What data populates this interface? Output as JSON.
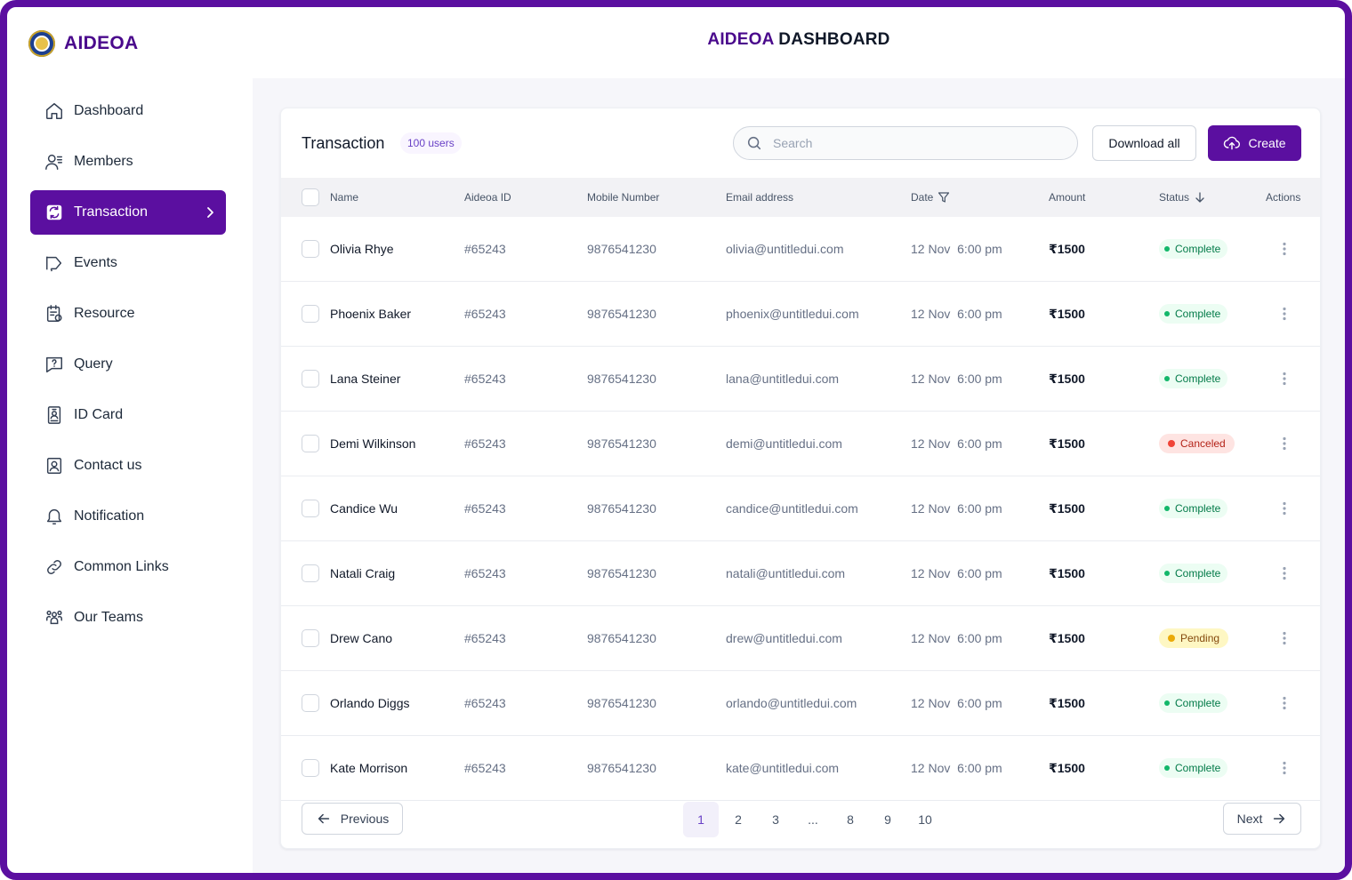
{
  "brand": {
    "name": "AIDEOA"
  },
  "header": {
    "title_accent": "AIDEOA",
    "title_rest": "DASHBOARD"
  },
  "sidebar": {
    "items": [
      {
        "label": "Dashboard",
        "icon": "home-icon"
      },
      {
        "label": "Members",
        "icon": "members-icon"
      },
      {
        "label": "Transaction",
        "icon": "transaction-icon",
        "active": true
      },
      {
        "label": "Events",
        "icon": "megaphone-icon"
      },
      {
        "label": "Resource",
        "icon": "resource-icon"
      },
      {
        "label": "Query",
        "icon": "query-icon"
      },
      {
        "label": "ID Card",
        "icon": "id-card-icon"
      },
      {
        "label": "Contact us",
        "icon": "contact-icon"
      },
      {
        "label": "Notification",
        "icon": "bell-icon"
      },
      {
        "label": "Common Links",
        "icon": "link-icon"
      },
      {
        "label": "Our Teams",
        "icon": "teams-icon"
      }
    ]
  },
  "toolbar": {
    "title": "Transaction",
    "badge": "100 users",
    "search_placeholder": "Search",
    "download_label": "Download all",
    "create_label": "Create"
  },
  "table": {
    "columns": {
      "name": "Name",
      "id": "Aideoa ID",
      "mobile": "Mobile Number",
      "email": "Email address",
      "date": "Date",
      "amount": "Amount",
      "status": "Status",
      "actions": "Actions"
    },
    "rows": [
      {
        "name": "Olivia Rhye",
        "id": "#65243",
        "mobile": "9876541230",
        "email": "olivia@untitledui.com",
        "date": "12 Nov  6:00 pm",
        "amount": "₹1500",
        "status": "Complete",
        "status_type": "complete"
      },
      {
        "name": "Phoenix Baker",
        "id": "#65243",
        "mobile": "9876541230",
        "email": "phoenix@untitledui.com",
        "date": "12 Nov  6:00 pm",
        "amount": "₹1500",
        "status": "Complete",
        "status_type": "complete"
      },
      {
        "name": "Lana Steiner",
        "id": "#65243",
        "mobile": "9876541230",
        "email": "lana@untitledui.com",
        "date": "12 Nov  6:00 pm",
        "amount": "₹1500",
        "status": "Complete",
        "status_type": "complete"
      },
      {
        "name": "Demi Wilkinson",
        "id": "#65243",
        "mobile": "9876541230",
        "email": "demi@untitledui.com",
        "date": "12 Nov  6:00 pm",
        "amount": "₹1500",
        "status": "Canceled",
        "status_type": "canceled"
      },
      {
        "name": "Candice Wu",
        "id": "#65243",
        "mobile": "9876541230",
        "email": "candice@untitledui.com",
        "date": "12 Nov  6:00 pm",
        "amount": "₹1500",
        "status": "Complete",
        "status_type": "complete"
      },
      {
        "name": "Natali Craig",
        "id": "#65243",
        "mobile": "9876541230",
        "email": "natali@untitledui.com",
        "date": "12 Nov  6:00 pm",
        "amount": "₹1500",
        "status": "Complete",
        "status_type": "complete"
      },
      {
        "name": "Drew Cano",
        "id": "#65243",
        "mobile": "9876541230",
        "email": "drew@untitledui.com",
        "date": "12 Nov  6:00 pm",
        "amount": "₹1500",
        "status": "Pending",
        "status_type": "pending"
      },
      {
        "name": "Orlando Diggs",
        "id": "#65243",
        "mobile": "9876541230",
        "email": "orlando@untitledui.com",
        "date": "12 Nov  6:00 pm",
        "amount": "₹1500",
        "status": "Complete",
        "status_type": "complete"
      },
      {
        "name": "Kate Morrison",
        "id": "#65243",
        "mobile": "9876541230",
        "email": "kate@untitledui.com",
        "date": "12 Nov  6:00 pm",
        "amount": "₹1500",
        "status": "Complete",
        "status_type": "complete"
      }
    ]
  },
  "pagination": {
    "previous_label": "Previous",
    "next_label": "Next",
    "pages": [
      "1",
      "2",
      "3",
      "...",
      "8",
      "9",
      "10"
    ],
    "current": "1"
  },
  "colors": {
    "brand": "#5b0fa0",
    "complete": "#027a48",
    "canceled": "#b42318",
    "pending": "#854a0e"
  }
}
